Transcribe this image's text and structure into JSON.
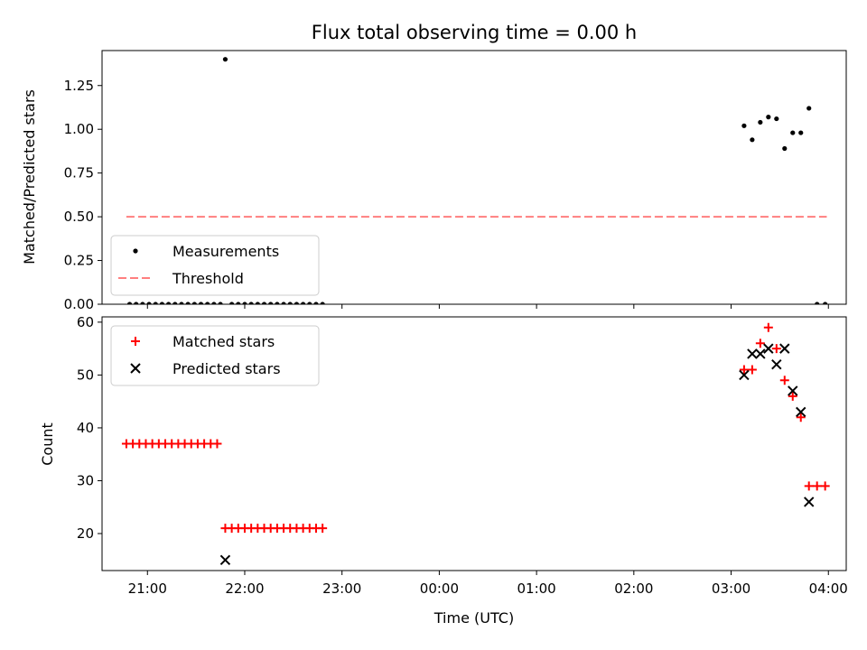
{
  "chart_data": [
    {
      "type": "scatter",
      "title": "Flux total observing time = 0.00 h",
      "xlabel": "",
      "ylabel": "Matched/Predicted stars",
      "xlim": [
        "20:32",
        "04:11"
      ],
      "ylim": [
        0,
        1.45
      ],
      "yticks": [
        "0.00",
        "0.25",
        "0.50",
        "0.75",
        "1.00",
        "1.25"
      ],
      "legend_location": "lower-left",
      "series": [
        {
          "name": "Measurements",
          "marker": "dot",
          "color": "#000000",
          "points": [
            [
              "20:49",
              0
            ],
            [
              "20:53",
              0
            ],
            [
              "20:57",
              0
            ],
            [
              "21:01",
              0
            ],
            [
              "21:05",
              0
            ],
            [
              "21:09",
              0
            ],
            [
              "21:13",
              0
            ],
            [
              "21:17",
              0
            ],
            [
              "21:21",
              0
            ],
            [
              "21:25",
              0
            ],
            [
              "21:29",
              0
            ],
            [
              "21:33",
              0
            ],
            [
              "21:37",
              0
            ],
            [
              "21:41",
              0
            ],
            [
              "21:45",
              0
            ],
            [
              "21:48",
              1.4
            ],
            [
              "21:52",
              0
            ],
            [
              "21:56",
              0
            ],
            [
              "22:00",
              0
            ],
            [
              "22:04",
              0
            ],
            [
              "22:08",
              0
            ],
            [
              "22:12",
              0
            ],
            [
              "22:16",
              0
            ],
            [
              "22:20",
              0
            ],
            [
              "22:24",
              0
            ],
            [
              "22:28",
              0
            ],
            [
              "22:32",
              0
            ],
            [
              "22:36",
              0
            ],
            [
              "22:40",
              0
            ],
            [
              "22:44",
              0
            ],
            [
              "22:48",
              0
            ],
            [
              "03:08",
              1.02
            ],
            [
              "03:13",
              0.94
            ],
            [
              "03:18",
              1.04
            ],
            [
              "03:23",
              1.07
            ],
            [
              "03:28",
              1.06
            ],
            [
              "03:33",
              0.89
            ],
            [
              "03:38",
              0.98
            ],
            [
              "03:43",
              0.98
            ],
            [
              "03:48",
              1.12
            ],
            [
              "03:53",
              0
            ],
            [
              "03:58",
              0
            ]
          ]
        },
        {
          "name": "Threshold",
          "style": "dashed",
          "color": "#ff7f7f",
          "points": [
            [
              "20:47",
              0.5
            ],
            [
              "03:59",
              0.5
            ]
          ]
        }
      ]
    },
    {
      "type": "scatter",
      "title": "",
      "xlabel": "Time (UTC)",
      "ylabel": "Count",
      "xlim": [
        "20:32",
        "04:11"
      ],
      "ylim": [
        13,
        61
      ],
      "yticks": [
        "20",
        "30",
        "40",
        "50",
        "60"
      ],
      "xticks": [
        "21:00",
        "22:00",
        "23:00",
        "00:00",
        "01:00",
        "02:00",
        "03:00",
        "04:00"
      ],
      "legend_location": "upper-left",
      "series": [
        {
          "name": "Matched stars",
          "marker": "plus",
          "color": "#ff0000",
          "points": [
            [
              "20:47",
              37
            ],
            [
              "20:51",
              37
            ],
            [
              "20:55",
              37
            ],
            [
              "20:59",
              37
            ],
            [
              "21:03",
              37
            ],
            [
              "21:07",
              37
            ],
            [
              "21:11",
              37
            ],
            [
              "21:15",
              37
            ],
            [
              "21:19",
              37
            ],
            [
              "21:23",
              37
            ],
            [
              "21:27",
              37
            ],
            [
              "21:31",
              37
            ],
            [
              "21:35",
              37
            ],
            [
              "21:39",
              37
            ],
            [
              "21:43",
              37
            ],
            [
              "21:48",
              21
            ],
            [
              "21:52",
              21
            ],
            [
              "21:56",
              21
            ],
            [
              "22:00",
              21
            ],
            [
              "22:04",
              21
            ],
            [
              "22:08",
              21
            ],
            [
              "22:12",
              21
            ],
            [
              "22:16",
              21
            ],
            [
              "22:20",
              21
            ],
            [
              "22:24",
              21
            ],
            [
              "22:28",
              21
            ],
            [
              "22:32",
              21
            ],
            [
              "22:36",
              21
            ],
            [
              "22:40",
              21
            ],
            [
              "22:44",
              21
            ],
            [
              "22:48",
              21
            ],
            [
              "03:08",
              51
            ],
            [
              "03:13",
              51
            ],
            [
              "03:18",
              56
            ],
            [
              "03:23",
              59
            ],
            [
              "03:28",
              55
            ],
            [
              "03:33",
              49
            ],
            [
              "03:38",
              46
            ],
            [
              "03:43",
              42
            ],
            [
              "03:48",
              29
            ],
            [
              "03:53",
              29
            ],
            [
              "03:58",
              29
            ]
          ]
        },
        {
          "name": "Predicted stars",
          "marker": "x",
          "color": "#000000",
          "points": [
            [
              "21:48",
              15
            ],
            [
              "03:08",
              50
            ],
            [
              "03:13",
              54
            ],
            [
              "03:18",
              54
            ],
            [
              "03:23",
              55
            ],
            [
              "03:28",
              52
            ],
            [
              "03:33",
              55
            ],
            [
              "03:38",
              47
            ],
            [
              "03:43",
              43
            ],
            [
              "03:48",
              26
            ]
          ]
        }
      ]
    }
  ]
}
